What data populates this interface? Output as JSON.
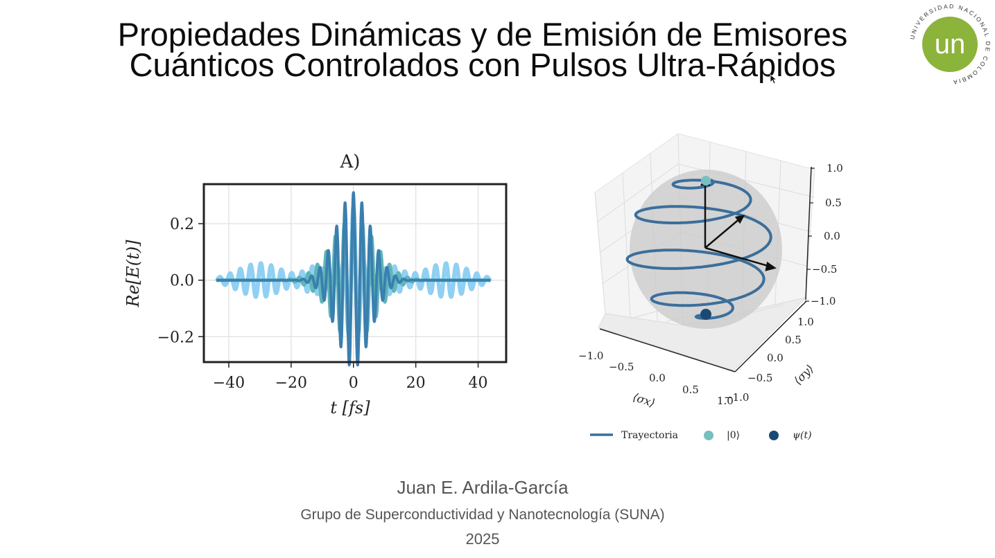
{
  "slide": {
    "title_line1": "Propiedades Dinámicas y de Emisión de Emisores",
    "title_line2": "Cuánticos Controlados con Pulsos Ultra-Rápidos",
    "author": "Juan E. Ardila-García",
    "group": "Grupo de Superconductividad y Nanotecnología (SUNA)",
    "year": "2025",
    "logo": {
      "text": "un",
      "ring_text": "UNIVERSIDAD NACIONAL DE COLOMBIA",
      "color": "#8cb33a"
    }
  },
  "chart_data": [
    {
      "type": "line",
      "title": "A)",
      "xlabel": "t [fs]",
      "ylabel": "Re[E(t)]",
      "xlim": [
        -48,
        49
      ],
      "ylim": [
        -0.29,
        0.34
      ],
      "xticks": [
        "−40",
        "−20",
        "0",
        "20",
        "40"
      ],
      "xtick_values": [
        -40,
        -20,
        0,
        20,
        40
      ],
      "yticks": [
        "−0.2",
        "0.0",
        "0.2"
      ],
      "ytick_values": [
        -0.2,
        0.0,
        0.2
      ],
      "grid": true,
      "series": [
        {
          "color": "#8fd0f3",
          "t_range": [
            -44,
            44
          ],
          "amp": 0.06,
          "period": 3.3,
          "envelope": "mexican-hat",
          "peak": 0.26
        },
        {
          "color": "#5fb6b6",
          "t_range": [
            -44,
            44
          ],
          "amp": 0.22,
          "period": 2.9,
          "envelope": "gaussian",
          "width": 7
        },
        {
          "color": "#3b7fb0",
          "t_range": [
            -44,
            44
          ],
          "amp": 0.31,
          "period": 2.7,
          "envelope": "gaussian",
          "width": 5.5
        }
      ]
    },
    {
      "type": "scatter",
      "subtype": "bloch-sphere-3d",
      "xlabel": "⟨σx⟩",
      "ylabel": "⟨σy⟩",
      "zticks": [
        "1.0",
        "0.5",
        "0.0",
        "−0.5",
        "−1.0"
      ],
      "xticks": [
        "−1.0",
        "−0.5",
        "0.0",
        "0.5",
        "1.0"
      ],
      "yticks": [
        "1.0",
        "0.5",
        "0.0",
        "−0.5",
        "−1.0"
      ],
      "legend": [
        {
          "label": "Trayectoria",
          "kind": "line",
          "color": "#3b6e9b"
        },
        {
          "label": "|0⟩",
          "kind": "dot",
          "color": "#76c0c0"
        },
        {
          "label": "ψ(t)",
          "kind": "dot",
          "color": "#1a4a74"
        }
      ],
      "legend_position": "bottom"
    }
  ]
}
